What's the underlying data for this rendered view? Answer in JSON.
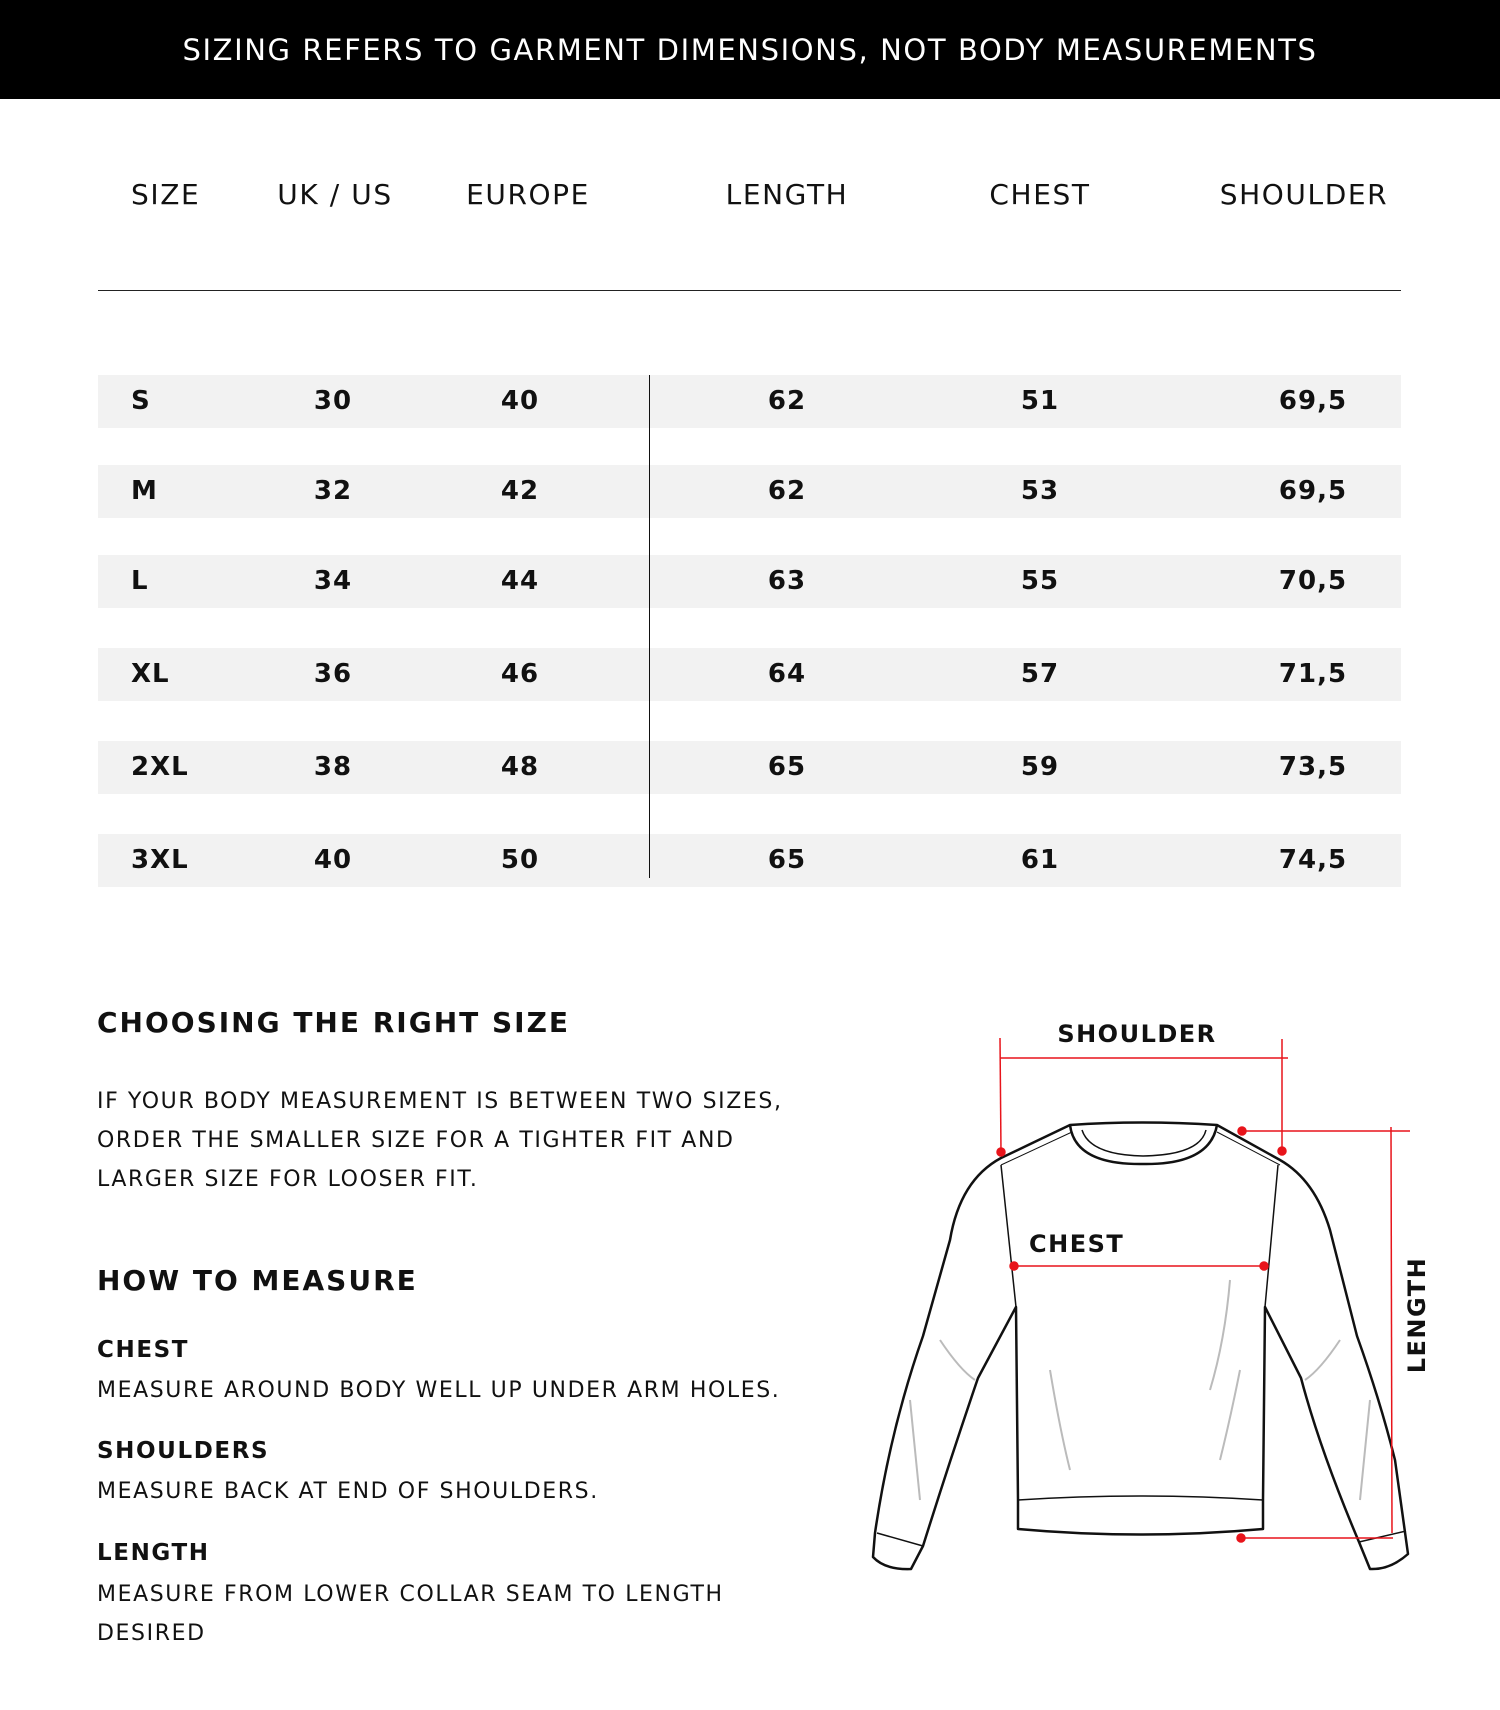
{
  "banner": "SIZING REFERS TO GARMENT DIMENSIONS, NOT BODY MEASUREMENTS",
  "table": {
    "headers": [
      "SIZE",
      "UK / US",
      "EUROPE",
      "LENGTH",
      "CHEST",
      "SHOULDER"
    ],
    "rows": [
      [
        "S",
        "30",
        "40",
        "62",
        "51",
        "69,5"
      ],
      [
        "M",
        "32",
        "42",
        "62",
        "53",
        "69,5"
      ],
      [
        "L",
        "34",
        "44",
        "63",
        "55",
        "70,5"
      ],
      [
        "XL",
        "36",
        "46",
        "64",
        "57",
        "71,5"
      ],
      [
        "2XL",
        "38",
        "48",
        "65",
        "59",
        "73,5"
      ],
      [
        "3XL",
        "40",
        "50",
        "65",
        "61",
        "74,5"
      ]
    ]
  },
  "choosing": {
    "title": "CHOOSING THE RIGHT SIZE",
    "lines": [
      "IF YOUR BODY MEASUREMENT IS BETWEEN TWO SIZES,",
      "ORDER THE SMALLER SIZE FOR A TIGHTER FIT AND",
      "LARGER SIZE FOR LOOSER FIT."
    ]
  },
  "measure": {
    "title": "HOW TO MEASURE",
    "items": [
      {
        "label": "CHEST",
        "desc": [
          "MEASURE AROUND BODY WELL UP UNDER ARM HOLES."
        ]
      },
      {
        "label": "SHOULDERS",
        "desc": [
          "MEASURE BACK AT END OF SHOULDERS."
        ]
      },
      {
        "label": "LENGTH",
        "desc": [
          "MEASURE FROM LOWER COLLAR SEAM TO LENGTH",
          "DESIRED"
        ]
      }
    ]
  },
  "diagram": {
    "shoulder": "SHOULDER",
    "chest": "CHEST",
    "length": "LENGTH",
    "accent": "#e8141b"
  }
}
